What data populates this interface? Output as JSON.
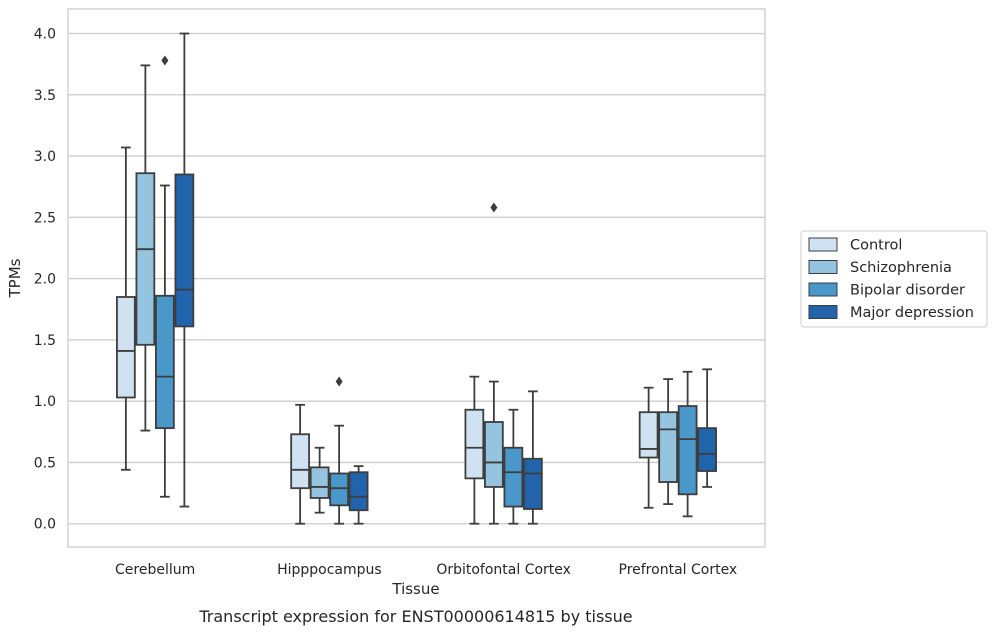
{
  "chart_data": {
    "type": "box",
    "xlabel": "Tissue",
    "ylabel": "TPMs",
    "caption": "Transcript expression for ENST00000614815 by tissue",
    "ylim": [
      -0.19,
      4.2
    ],
    "yticks": [
      "0.0",
      "0.5",
      "1.0",
      "1.5",
      "2.0",
      "2.5",
      "3.0",
      "3.5",
      "4.0"
    ],
    "grid": true,
    "legend_position": "right",
    "categories": [
      "Cerebellum",
      "Hipppocampus",
      "Orbitofontal Cortex",
      "Prefrontal Cortex"
    ],
    "series": [
      {
        "name": "Control",
        "color": "#d0e1f2",
        "boxes": [
          {
            "whislo": 0.44,
            "q1": 1.03,
            "med": 1.41,
            "q3": 1.85,
            "whishi": 3.07,
            "fliers": []
          },
          {
            "whislo": 0.0,
            "q1": 0.29,
            "med": 0.44,
            "q3": 0.73,
            "whishi": 0.97,
            "fliers": []
          },
          {
            "whislo": 0.0,
            "q1": 0.37,
            "med": 0.62,
            "q3": 0.93,
            "whishi": 1.2,
            "fliers": []
          },
          {
            "whislo": 0.13,
            "q1": 0.54,
            "med": 0.61,
            "q3": 0.91,
            "whishi": 1.11,
            "fliers": []
          }
        ]
      },
      {
        "name": "Schizophrenia",
        "color": "#94c4df",
        "boxes": [
          {
            "whislo": 0.76,
            "q1": 1.46,
            "med": 2.24,
            "q3": 2.86,
            "whishi": 3.74,
            "fliers": []
          },
          {
            "whislo": 0.09,
            "q1": 0.21,
            "med": 0.3,
            "q3": 0.46,
            "whishi": 0.62,
            "fliers": []
          },
          {
            "whislo": 0.0,
            "q1": 0.3,
            "med": 0.5,
            "q3": 0.83,
            "whishi": 1.16,
            "fliers": [
              2.58
            ]
          },
          {
            "whislo": 0.16,
            "q1": 0.34,
            "med": 0.77,
            "q3": 0.91,
            "whishi": 1.18,
            "fliers": []
          }
        ]
      },
      {
        "name": "Bipolar disorder",
        "color": "#4a98c9",
        "boxes": [
          {
            "whislo": 0.22,
            "q1": 0.78,
            "med": 1.2,
            "q3": 1.86,
            "whishi": 2.76,
            "fliers": [
              3.78
            ]
          },
          {
            "whislo": 0.0,
            "q1": 0.15,
            "med": 0.29,
            "q3": 0.41,
            "whishi": 0.8,
            "fliers": [
              1.16
            ]
          },
          {
            "whislo": 0.0,
            "q1": 0.14,
            "med": 0.42,
            "q3": 0.62,
            "whishi": 0.93,
            "fliers": []
          },
          {
            "whislo": 0.06,
            "q1": 0.24,
            "med": 0.69,
            "q3": 0.96,
            "whishi": 1.24,
            "fliers": []
          }
        ]
      },
      {
        "name": "Major depression",
        "color": "#2164ab",
        "boxes": [
          {
            "whislo": 0.14,
            "q1": 1.61,
            "med": 1.91,
            "q3": 2.85,
            "whishi": 4.0,
            "fliers": []
          },
          {
            "whislo": 0.0,
            "q1": 0.11,
            "med": 0.22,
            "q3": 0.42,
            "whishi": 0.47,
            "fliers": []
          },
          {
            "whislo": 0.0,
            "q1": 0.12,
            "med": 0.41,
            "q3": 0.53,
            "whishi": 1.08,
            "fliers": []
          },
          {
            "whislo": 0.3,
            "q1": 0.43,
            "med": 0.57,
            "q3": 0.78,
            "whishi": 1.26,
            "fliers": []
          }
        ]
      }
    ]
  }
}
